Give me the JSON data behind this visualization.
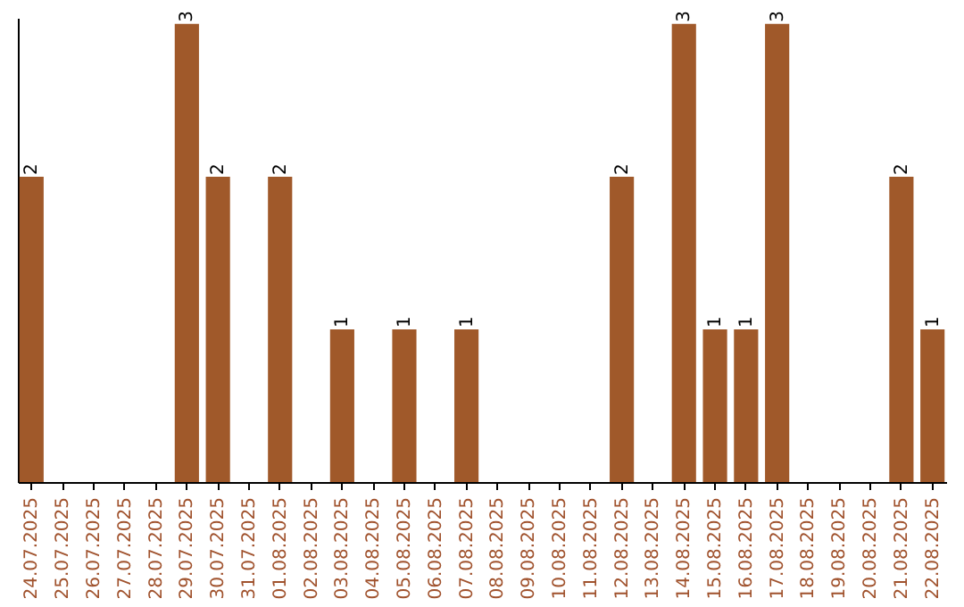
{
  "chart_data": {
    "type": "bar",
    "categories": [
      "24.07.2025",
      "25.07.2025",
      "26.07.2025",
      "27.07.2025",
      "28.07.2025",
      "29.07.2025",
      "30.07.2025",
      "31.07.2025",
      "01.08.2025",
      "02.08.2025",
      "03.08.2025",
      "04.08.2025",
      "05.08.2025",
      "06.08.2025",
      "07.08.2025",
      "08.08.2025",
      "09.08.2025",
      "10.08.2025",
      "11.08.2025",
      "12.08.2025",
      "13.08.2025",
      "14.08.2025",
      "15.08.2025",
      "16.08.2025",
      "17.08.2025",
      "18.08.2025",
      "19.08.2025",
      "20.08.2025",
      "21.08.2025",
      "22.08.2025"
    ],
    "values": [
      2,
      0,
      0,
      0,
      0,
      3,
      2,
      0,
      2,
      0,
      1,
      0,
      1,
      0,
      1,
      0,
      0,
      0,
      0,
      2,
      0,
      3,
      1,
      1,
      3,
      0,
      0,
      0,
      2,
      1
    ],
    "value_labels": [
      "2",
      null,
      null,
      null,
      null,
      "3",
      "2",
      null,
      "2",
      null,
      "1",
      null,
      "1",
      null,
      "1",
      null,
      null,
      null,
      null,
      "2",
      null,
      "3",
      "1",
      "1",
      "3",
      null,
      null,
      null,
      "2",
      "1"
    ],
    "color": "#a0592a",
    "ylim": [
      0,
      3.04
    ],
    "tick_labels": "x"
  }
}
